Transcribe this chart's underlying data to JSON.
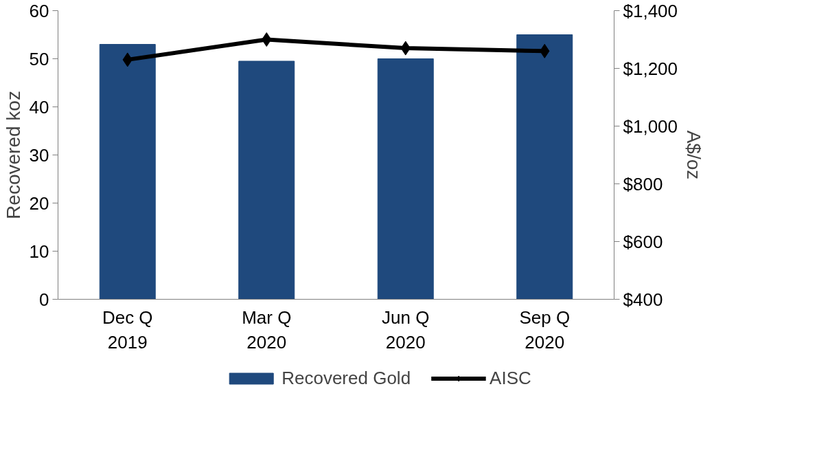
{
  "chart_data": {
    "type": "bar",
    "categories": [
      "Dec Q\n2019",
      "Mar Q\n2020",
      "Jun Q\n2020",
      "Sep Q\n2020"
    ],
    "series": [
      {
        "name": "Recovered Gold",
        "color": "#1f497d",
        "values": [
          53,
          49.5,
          50,
          55
        ]
      },
      {
        "name": "AISC",
        "type": "line",
        "axis": "y2",
        "color": "#000000",
        "marker": "diamond",
        "values": [
          1230,
          1300,
          1270,
          1260
        ]
      }
    ],
    "ylabel": "Recovered koz",
    "y2label": "A$/oz",
    "ylim": [
      0,
      60
    ],
    "yticks": [
      0,
      10,
      20,
      30,
      40,
      50,
      60
    ],
    "y2lim": [
      400,
      1400
    ],
    "y2ticks": [
      {
        "value": 400,
        "label": "$400"
      },
      {
        "value": 600,
        "label": "$600"
      },
      {
        "value": 800,
        "label": "$800"
      },
      {
        "value": 1000,
        "label": "$1,000"
      },
      {
        "value": 1200,
        "label": "$1,200"
      },
      {
        "value": 1400,
        "label": "$1,400"
      }
    ],
    "legend": "bottom",
    "grid": false,
    "line_style": "solid"
  }
}
